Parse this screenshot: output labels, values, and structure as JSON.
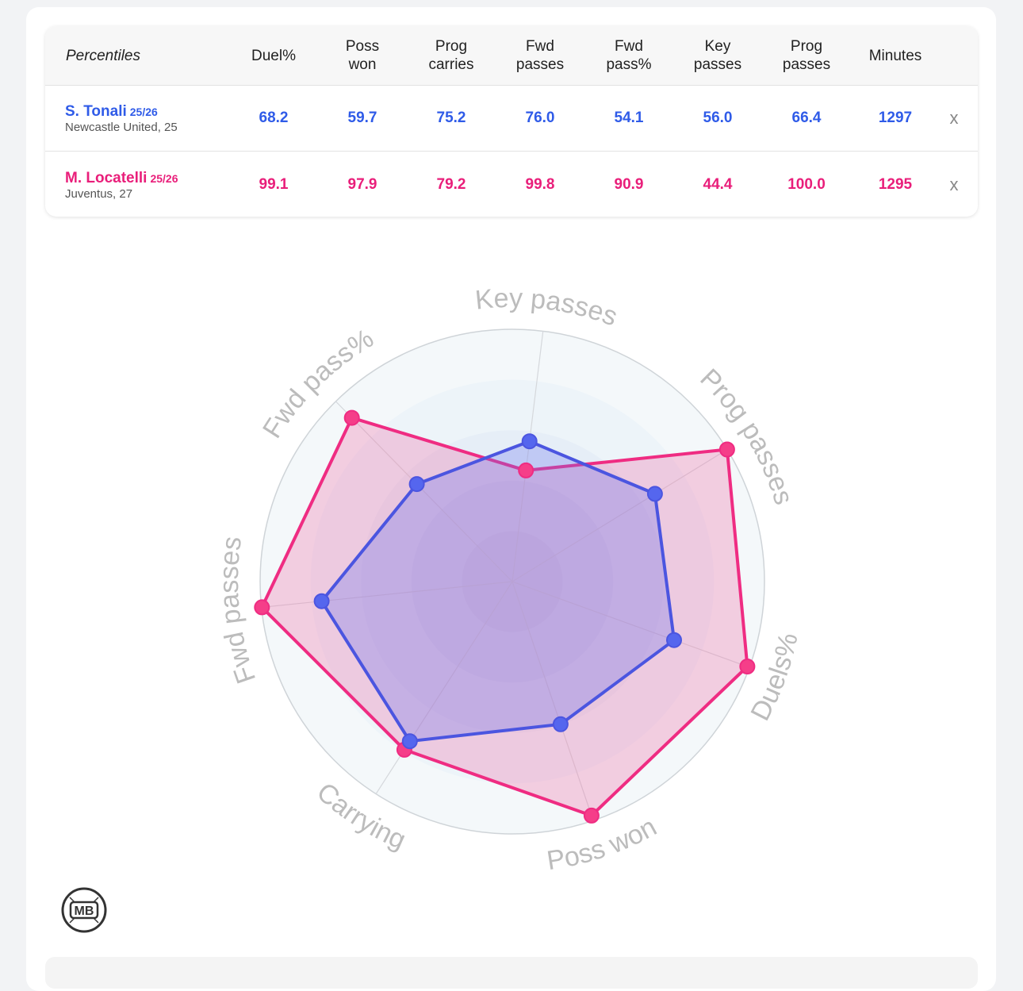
{
  "table": {
    "corner_label": "Percentiles",
    "columns": [
      "Duel%",
      "Poss won",
      "Prog carries",
      "Fwd passes",
      "Fwd pass%",
      "Key passes",
      "Prog passes",
      "Minutes"
    ],
    "remove_label": "x"
  },
  "players": [
    {
      "name": "S. Tonali",
      "season": "25/26",
      "team_age": "Newcastle United, 25",
      "values": [
        "68.2",
        "59.7",
        "75.2",
        "76.0",
        "54.1",
        "56.0",
        "66.4",
        "1297"
      ],
      "color": "#2f5be8"
    },
    {
      "name": "M. Locatelli",
      "season": "25/26",
      "team_age": "Juventus, 27",
      "values": [
        "99.1",
        "97.9",
        "79.2",
        "99.8",
        "90.9",
        "44.4",
        "100.0",
        "1295"
      ],
      "color": "#e91e7a"
    }
  ],
  "chart_data": {
    "type": "radar",
    "axes": [
      "Key passes",
      "Prog passes",
      "Duels%",
      "Poss won",
      "Carrying",
      "Fwd passes",
      "Fwd pass%"
    ],
    "range": [
      0,
      100
    ],
    "series": [
      {
        "name": "S. Tonali",
        "values": [
          56.0,
          66.4,
          68.2,
          59.7,
          75.2,
          76.0,
          54.1
        ],
        "stroke": "#4b55e0",
        "fill": "#6a74ee",
        "marker": "#5566ee"
      },
      {
        "name": "M. Locatelli",
        "values": [
          44.4,
          100.0,
          99.1,
          97.9,
          79.2,
          99.8,
          90.9
        ],
        "stroke": "#ef2c82",
        "fill": "#f06aa6",
        "marker": "#f53e89"
      }
    ]
  },
  "logo": {
    "text": "MB"
  }
}
